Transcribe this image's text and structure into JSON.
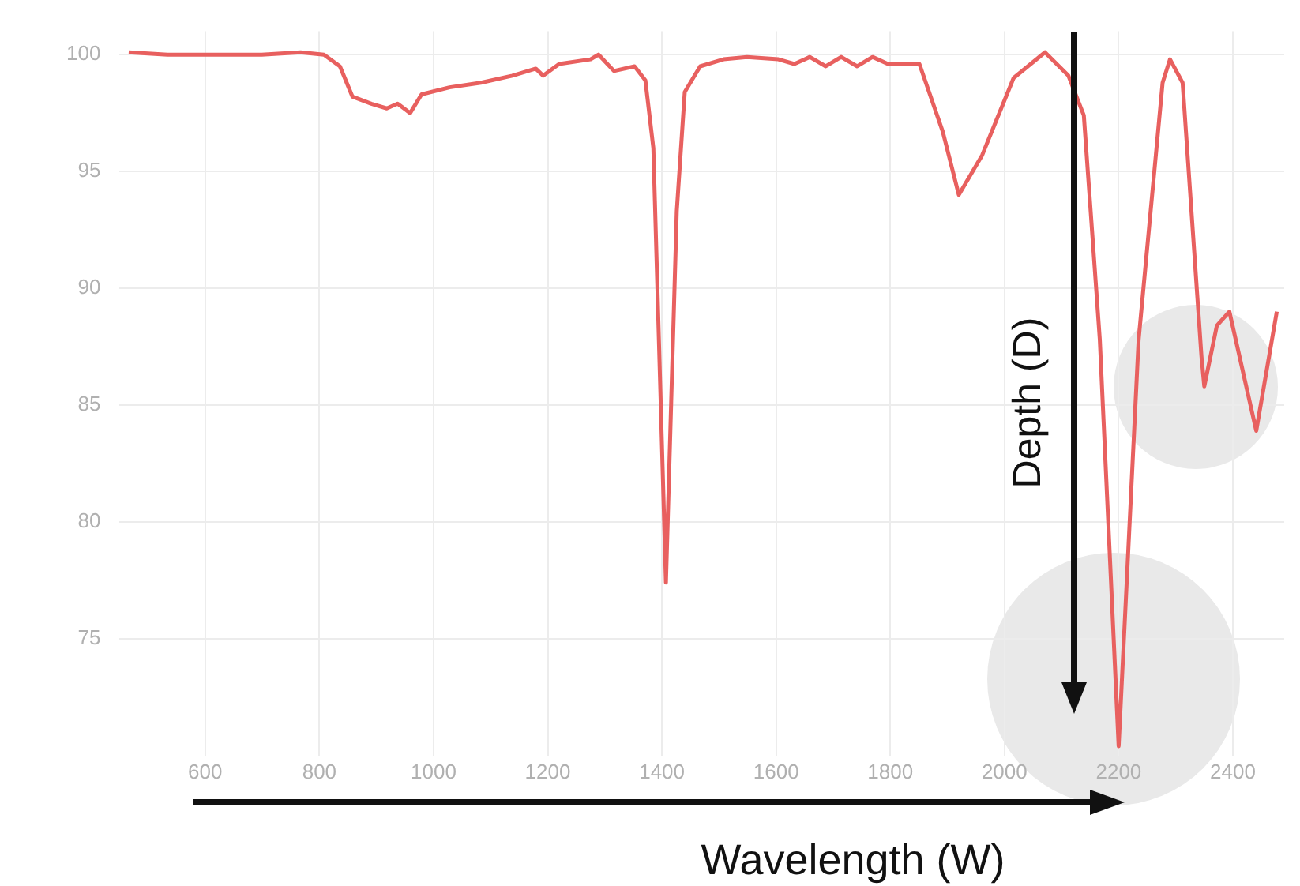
{
  "chart_data": {
    "type": "line",
    "x": [
      466,
      534,
      699,
      767,
      808,
      836,
      858,
      891,
      918,
      937,
      959,
      979,
      1028,
      1083,
      1138,
      1179,
      1192,
      1220,
      1275,
      1289,
      1316,
      1352,
      1371,
      1385,
      1407,
      1426,
      1440,
      1467,
      1508,
      1549,
      1604,
      1632,
      1659,
      1687,
      1714,
      1742,
      1769,
      1796,
      1851,
      1892,
      1920,
      1961,
      2016,
      2071,
      2112,
      2139,
      2167,
      2200,
      2235,
      2277,
      2290,
      2312,
      2345,
      2350,
      2372,
      2394,
      2441,
      2477
    ],
    "series": [
      {
        "color": "#e8605f",
        "values": [
          100.1,
          100,
          100,
          100.1,
          100,
          99.5,
          98.2,
          97.9,
          97.7,
          97.9,
          97.5,
          98.3,
          98.6,
          98.8,
          99.1,
          99.4,
          99.1,
          99.6,
          99.8,
          100,
          99.3,
          99.5,
          98.9,
          96,
          77.4,
          93.3,
          98.4,
          99.5,
          99.8,
          99.9,
          99.8,
          99.6,
          99.9,
          99.5,
          99.9,
          99.5,
          99.9,
          99.6,
          99.6,
          96.7,
          94,
          95.7,
          99,
          100.1,
          99.1,
          97.4,
          87.8,
          70.4,
          87.8,
          98.8,
          99.8,
          98.8,
          87.1,
          85.8,
          88.4,
          89,
          83.9,
          89
        ]
      }
    ],
    "xlim": [
      450,
      2490
    ],
    "ylim": [
      70,
      101
    ],
    "xticks": [
      600,
      800,
      1000,
      1200,
      1400,
      1600,
      1800,
      2000,
      2200,
      2400
    ],
    "yticks": [
      75,
      80,
      85,
      90,
      95,
      100
    ],
    "grid": true,
    "marker": "none",
    "line_style": "solid",
    "legend": false,
    "annotations": [
      "Depth (D)",
      "Wavelength (W)"
    ]
  }
}
